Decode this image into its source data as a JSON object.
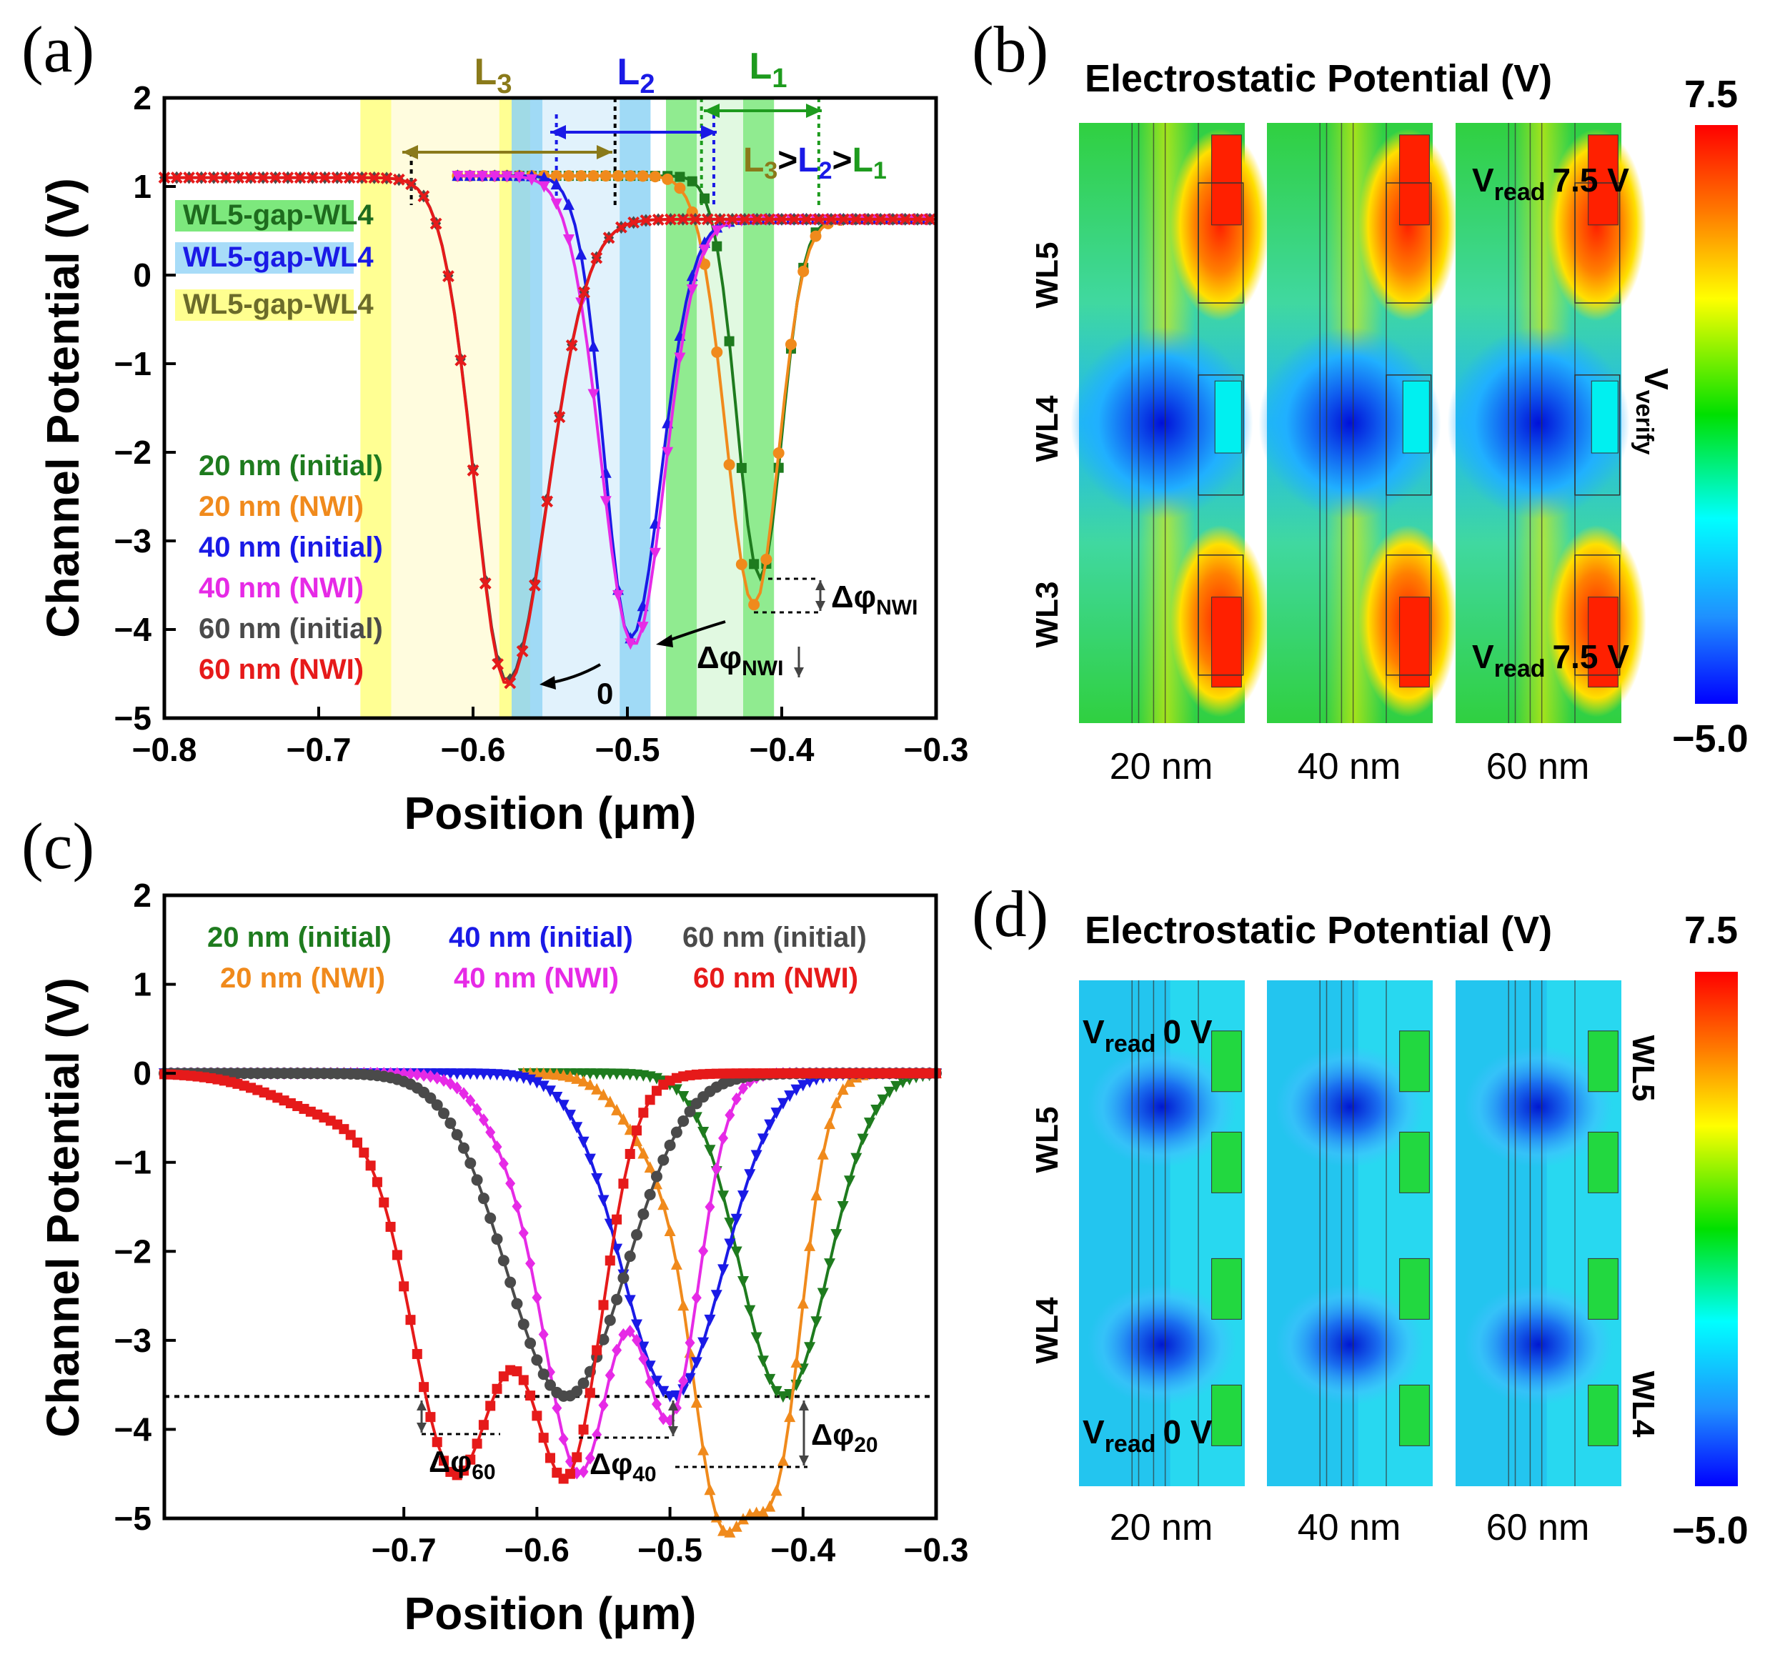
{
  "colors": {
    "g20": "#1e7b1e",
    "o20": "#f08a1c",
    "b40": "#1a1ae6",
    "m40": "#e62ae6",
    "k60": "#4a4a4a",
    "r60": "#e61a1a",
    "bandYellow": "#ffff80",
    "bandBlue": "#8fd3f5",
    "bandGreen": "#7de87d",
    "bandLightYellow": "#fffcd8",
    "bandLightBlue": "#dcf0fc",
    "bandLightGreen": "#dcf8dc"
  },
  "panel_a": {
    "label": "(a)",
    "ylabel": "Channel Potential (V)",
    "xlabel": "Position (μm)",
    "bands": [
      "WL5-gap-WL4",
      "WL5-gap-WL4",
      "WL5-gap-WL4"
    ],
    "L3": {
      "main": "L",
      "sub": "3"
    },
    "L2": {
      "main": "L",
      "sub": "2"
    },
    "L1": {
      "main": "L",
      "sub": "1"
    },
    "relation": {
      "p1": "L",
      "s1": "3",
      "g1": ">",
      "p2": "L",
      "s2": "2",
      "g2": ">",
      "p3": "L",
      "s3": "1"
    },
    "legend": [
      "20 nm (initial)",
      "20 nm (NWI)",
      "40 nm (initial)",
      "40 nm (NWI)",
      "60 nm (initial)",
      "60 nm (NWI)"
    ],
    "dphi": {
      "main": "Δφ",
      "sub": "NWI"
    },
    "zero": "0"
  },
  "panel_b": {
    "label": "(b)",
    "title": "Electrostatic Potential (V)",
    "cbar_max": "7.5",
    "cbar_min": "−5.0",
    "rows": [
      "WL5",
      "WL4",
      "WL3"
    ],
    "captions": [
      "20 nm",
      "40 nm",
      "60 nm"
    ],
    "vread_top": {
      "main": "V",
      "sub": "read",
      "val": "7.5 V"
    },
    "vread_bottom": {
      "main": "V",
      "sub": "read",
      "val": "7.5 V"
    },
    "vverify": {
      "main": "V",
      "sub": "verify"
    }
  },
  "panel_c": {
    "label": "(c)",
    "ylabel": "Channel Potential (V)",
    "xlabel": "Position (μm)",
    "legend_row1": [
      "20 nm (initial)",
      "40 nm (initial)",
      "60 nm (initial)"
    ],
    "legend_row2": [
      "20 nm (NWI)",
      "40 nm (NWI)",
      "60 nm (NWI)"
    ],
    "dphi60": {
      "main": "Δφ",
      "sub": "60"
    },
    "dphi40": {
      "main": "Δφ",
      "sub": "40"
    },
    "dphi20": {
      "main": "Δφ",
      "sub": "20"
    }
  },
  "panel_d": {
    "label": "(d)",
    "title": "Electrostatic Potential (V)",
    "cbar_max": "7.5",
    "cbar_min": "−5.0",
    "rows_left": [
      "WL5",
      "WL4"
    ],
    "rows_right": [
      "WL5",
      "WL4"
    ],
    "captions": [
      "20 nm",
      "40 nm",
      "60 nm"
    ],
    "vread_top": {
      "main": "V",
      "sub": "read",
      "val": "0 V"
    },
    "vread_bottom": {
      "main": "V",
      "sub": "read",
      "val": "0 V"
    }
  },
  "chart_data": [
    {
      "type": "line",
      "panel": "a",
      "xlabel": "Position (μm)",
      "ylabel": "Channel Potential (V)",
      "xlim": [
        -0.8,
        -0.3
      ],
      "ylim": [
        -5,
        2
      ],
      "xticks": [
        "−0.8",
        "−0.7",
        "−0.6",
        "−0.5",
        "−0.4",
        "−0.3"
      ],
      "yticks": [
        "2",
        "1",
        "0",
        "−1",
        "−2",
        "−3",
        "−4",
        "−5"
      ],
      "series": [
        {
          "name": "20 nm (initial)",
          "color": "#1e7b1e",
          "marker": "square",
          "x0": -0.61,
          "left": 1.12,
          "right": 0.63,
          "minx": -0.414,
          "miny": -3.42,
          "wl": 0.015,
          "wr": 0.014
        },
        {
          "name": "20 nm (NWI)",
          "color": "#f08a1c",
          "marker": "circle",
          "x0": -0.61,
          "left": 1.12,
          "right": 0.63,
          "minx": -0.418,
          "miny": -3.72,
          "wl": 0.018,
          "wr": 0.016
        },
        {
          "name": "40 nm (initial)",
          "color": "#1a1ae6",
          "marker": "tri-up",
          "x0": -0.61,
          "left": 1.12,
          "right": 0.63,
          "minx": -0.498,
          "miny": -4.1,
          "wl": 0.017,
          "wr": 0.02
        },
        {
          "name": "40 nm (NWI)",
          "color": "#e62ae6",
          "marker": "tri-down",
          "x0": -0.61,
          "left": 1.12,
          "right": 0.63,
          "minx": -0.496,
          "miny": -4.18,
          "wl": 0.021,
          "wr": 0.02
        },
        {
          "name": "60 nm (initial)",
          "color": "#4a4a4a",
          "marker": "diamond",
          "x0": -0.8,
          "left": 1.1,
          "right": 0.63,
          "minx": -0.578,
          "miny": -4.58,
          "wl": 0.021,
          "wr": 0.026
        },
        {
          "name": "60 nm (NWI)",
          "color": "#e61a1a",
          "marker": "cross",
          "x0": -0.8,
          "left": 1.1,
          "right": 0.63,
          "minx": -0.578,
          "miny": -4.62,
          "wl": 0.021,
          "wr": 0.026
        }
      ],
      "bands": [
        {
          "x0": -0.673,
          "x1": -0.653,
          "color": "bandYellow"
        },
        {
          "x0": -0.653,
          "x1": -0.583,
          "color": "bandLightYellow"
        },
        {
          "x0": -0.583,
          "x1": -0.563,
          "color": "bandYellow"
        },
        {
          "x0": -0.575,
          "x1": -0.555,
          "color": "bandBlue"
        },
        {
          "x0": -0.555,
          "x1": -0.505,
          "color": "bandLightBlue"
        },
        {
          "x0": -0.505,
          "x1": -0.485,
          "color": "bandBlue"
        },
        {
          "x0": -0.475,
          "x1": -0.455,
          "color": "bandGreen"
        },
        {
          "x0": -0.455,
          "x1": -0.425,
          "color": "bandLightGreen"
        },
        {
          "x0": -0.425,
          "x1": -0.405,
          "color": "bandGreen"
        }
      ]
    },
    {
      "type": "line",
      "panel": "c",
      "xlabel": "Position (μm)",
      "ylabel": "Channel Potential (V)",
      "xlim": [
        -0.88,
        -0.3
      ],
      "ylim": [
        -5,
        2
      ],
      "xticks": [
        "−0.7",
        "−0.6",
        "−0.5",
        "−0.4",
        "−0.3"
      ],
      "yticks": [
        "2",
        "1",
        "0",
        "−1",
        "−2",
        "−3",
        "−4",
        "−5"
      ],
      "reference_line": -3.63,
      "series": [
        {
          "name": "20 nm (initial)",
          "color": "#1e7b1e",
          "marker": "tri-down",
          "x0": -0.61,
          "dips": [
            {
              "x": -0.414,
              "d": -3.63,
              "s": 0.033
            }
          ]
        },
        {
          "name": "20 nm (NWI)",
          "color": "#f08a1c",
          "marker": "tri-up",
          "x0": -0.61,
          "dips": [
            {
              "x": -0.462,
              "d": -4.1,
              "s": 0.02
            },
            {
              "x": -0.42,
              "d": -4.2,
              "s": 0.02
            },
            {
              "x": -0.498,
              "d": -1.1,
              "s": 0.03
            }
          ]
        },
        {
          "name": "40 nm (initial)",
          "color": "#1a1ae6",
          "marker": "tri-down",
          "x0": -0.88,
          "dips": [
            {
              "x": -0.498,
              "d": -3.63,
              "s": 0.038
            }
          ]
        },
        {
          "name": "40 nm (NWI)",
          "color": "#e62ae6",
          "marker": "diamond",
          "x0": -0.88,
          "dips": [
            {
              "x": -0.565,
              "d": -3.82,
              "s": 0.024
            },
            {
              "x": -0.5,
              "d": -3.8,
              "s": 0.022
            },
            {
              "x": -0.6,
              "d": -1.2,
              "s": 0.03
            }
          ]
        },
        {
          "name": "60 nm (initial)",
          "color": "#4a4a4a",
          "marker": "circle",
          "x0": -0.88,
          "dips": [
            {
              "x": -0.578,
              "d": -3.63,
              "s": 0.045
            }
          ]
        },
        {
          "name": "60 nm (NWI)",
          "color": "#e61a1a",
          "marker": "square",
          "x0": -0.88,
          "dips": [
            {
              "x": -0.665,
              "d": -3.4,
              "s": 0.03
            },
            {
              "x": -0.575,
              "d": -3.55,
              "s": 0.025
            },
            {
              "x": -0.62,
              "d": -1.5,
              "s": 0.045
            },
            {
              "x": -0.74,
              "d": -0.5,
              "s": 0.05
            }
          ]
        }
      ]
    }
  ]
}
